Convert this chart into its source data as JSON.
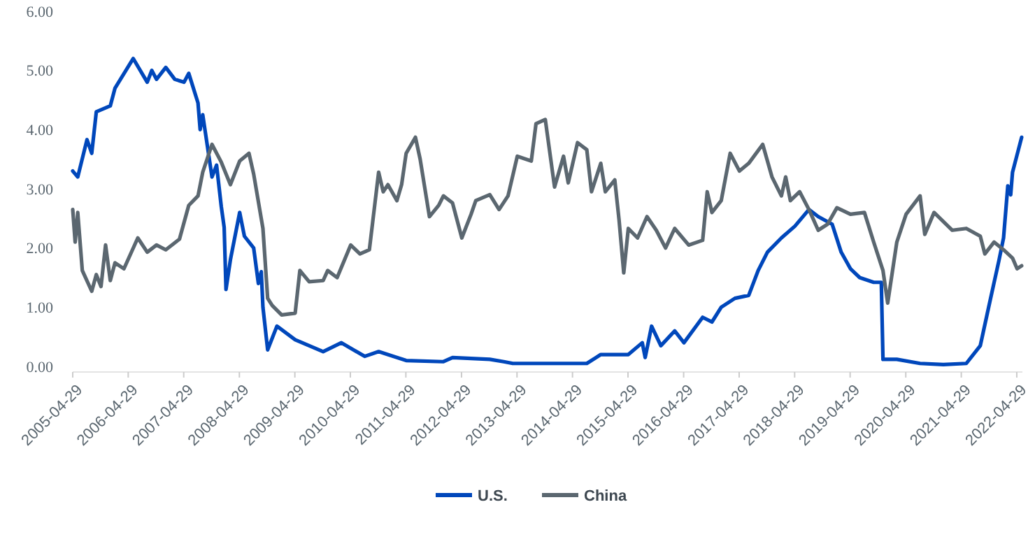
{
  "chart_data": {
    "type": "line",
    "legend": "bottom",
    "grid": false,
    "marker": "none",
    "line_style": "solid",
    "xlim": [
      "2005-04-29",
      "2022-06-05"
    ],
    "xticks": [
      "2005-04-29",
      "2006-04-29",
      "2007-04-29",
      "2008-04-29",
      "2009-04-29",
      "2010-04-29",
      "2011-04-29",
      "2012-04-29",
      "2013-04-29",
      "2014-04-29",
      "2015-04-29",
      "2016-04-29",
      "2017-04-29",
      "2018-04-29",
      "2019-04-29",
      "2020-04-29",
      "2021-04-29",
      "2022-04-29"
    ],
    "ylim": [
      0,
      6
    ],
    "yticks": [
      {
        "value": 0,
        "label": "0.00"
      },
      {
        "value": 1,
        "label": "1.00"
      },
      {
        "value": 2,
        "label": "2.00"
      },
      {
        "value": 3,
        "label": "3.00"
      },
      {
        "value": 4,
        "label": "4.00"
      },
      {
        "value": 5,
        "label": "5.00"
      },
      {
        "value": 6,
        "label": "6.00"
      }
    ],
    "series": [
      {
        "name": "U.S.",
        "color": "#0047bb",
        "x": [
          "2005-04-29",
          "2005-06",
          "2005-08",
          "2005-09",
          "2005-10",
          "2006-01",
          "2006-02",
          "2006-06",
          "2006-09",
          "2006-10",
          "2006-11",
          "2007-01",
          "2007-03",
          "2007-05",
          "2007-06",
          "2007-08",
          "2007-08-15",
          "2007-09",
          "2007-11",
          "2007-12",
          "2008-01",
          "2008-01-20",
          "2008-02",
          "2008-03",
          "2008-05",
          "2008-06",
          "2008-08",
          "2008-09",
          "2008-09-20",
          "2008-10",
          "2008-11",
          "2009-01",
          "2009-05",
          "2009-11",
          "2010-03",
          "2010-08",
          "2010-11",
          "2011-05",
          "2012-01",
          "2012-03",
          "2012-11",
          "2013-02",
          "2013-04",
          "2014-08",
          "2014-11",
          "2015-05",
          "2015-08",
          "2015-08-20",
          "2015-10",
          "2015-12",
          "2016-03",
          "2016-05",
          "2016-09",
          "2016-11",
          "2017-01",
          "2017-04",
          "2017-07",
          "2017-09",
          "2017-11",
          "2018-02",
          "2018-05",
          "2018-08",
          "2018-10",
          "2019-01",
          "2019-03",
          "2019-05",
          "2019-07",
          "2019-10",
          "2019-11-20",
          "2019-12",
          "2020-03",
          "2020-08",
          "2021-01",
          "2021-06",
          "2021-09",
          "2021-11",
          "2022-01",
          "2022-02",
          "2022-03",
          "2022-03-20",
          "2022-04",
          "2022-05-31"
        ],
        "values": [
          3.3,
          3.2,
          3.83,
          3.6,
          4.3,
          4.4,
          4.7,
          5.2,
          4.8,
          5.0,
          4.85,
          5.05,
          4.85,
          4.8,
          4.95,
          4.45,
          4.0,
          4.25,
          3.2,
          3.4,
          2.7,
          2.35,
          1.3,
          1.8,
          2.6,
          2.2,
          2.0,
          1.4,
          1.6,
          1.0,
          0.28,
          0.68,
          0.45,
          0.25,
          0.4,
          0.17,
          0.25,
          0.1,
          0.08,
          0.15,
          0.12,
          0.08,
          0.05,
          0.05,
          0.2,
          0.2,
          0.4,
          0.15,
          0.68,
          0.35,
          0.6,
          0.4,
          0.83,
          0.75,
          1.0,
          1.15,
          1.2,
          1.62,
          1.93,
          2.17,
          2.37,
          2.65,
          2.53,
          2.4,
          1.93,
          1.65,
          1.5,
          1.42,
          1.42,
          0.12,
          0.12,
          0.05,
          0.03,
          0.05,
          0.35,
          1.07,
          1.78,
          2.17,
          3.05,
          2.9,
          3.28,
          3.87
        ]
      },
      {
        "name": "China",
        "color": "#5b6770",
        "x": [
          "2005-04-29",
          "2005-05-15",
          "2005-06",
          "2005-07",
          "2005-09",
          "2005-10",
          "2005-11",
          "2005-12",
          "2006-01",
          "2006-02",
          "2006-04",
          "2006-07",
          "2006-09",
          "2006-11",
          "2007-01",
          "2007-04",
          "2007-06",
          "2007-08",
          "2007-09",
          "2007-11",
          "2008-01",
          "2008-03",
          "2008-05",
          "2008-07",
          "2008-08",
          "2008-10",
          "2008-11",
          "2008-12",
          "2009-02",
          "2009-05",
          "2009-06",
          "2009-08",
          "2009-11",
          "2009-12",
          "2010-02",
          "2010-05",
          "2010-07",
          "2010-09",
          "2010-11",
          "2010-12",
          "2011-01",
          "2011-03",
          "2011-04",
          "2011-05",
          "2011-07",
          "2011-08",
          "2011-10",
          "2011-12",
          "2012-01",
          "2012-03",
          "2012-05",
          "2012-07",
          "2012-08",
          "2012-11",
          "2013-01",
          "2013-03",
          "2013-05",
          "2013-08",
          "2013-09",
          "2013-11",
          "2014-01",
          "2014-03",
          "2014-04",
          "2014-06",
          "2014-08",
          "2014-09",
          "2014-11",
          "2014-12",
          "2015-02",
          "2015-03",
          "2015-04",
          "2015-05",
          "2015-07",
          "2015-09",
          "2015-11",
          "2016-01",
          "2016-03",
          "2016-06",
          "2016-09",
          "2016-10",
          "2016-11",
          "2017-01",
          "2017-03",
          "2017-05",
          "2017-07",
          "2017-10",
          "2017-12",
          "2018-02",
          "2018-03",
          "2018-04",
          "2018-06",
          "2018-08",
          "2018-10",
          "2018-12",
          "2019-02",
          "2019-05",
          "2019-08",
          "2019-10",
          "2019-12",
          "2020-01",
          "2020-03",
          "2020-05",
          "2020-08",
          "2020-09",
          "2020-11",
          "2021-03",
          "2021-06",
          "2021-09",
          "2021-10",
          "2021-12",
          "2022-02",
          "2022-04",
          "2022-05",
          "2022-05-31"
        ],
        "values": [
          2.65,
          2.1,
          2.6,
          1.62,
          1.27,
          1.55,
          1.35,
          2.05,
          1.45,
          1.75,
          1.65,
          2.17,
          1.93,
          2.05,
          1.97,
          2.15,
          2.72,
          2.88,
          3.28,
          3.75,
          3.45,
          3.07,
          3.47,
          3.6,
          3.25,
          2.33,
          1.15,
          1.03,
          0.87,
          0.9,
          1.62,
          1.43,
          1.45,
          1.62,
          1.5,
          2.05,
          1.9,
          1.97,
          3.28,
          2.95,
          3.07,
          2.8,
          3.07,
          3.6,
          3.87,
          3.5,
          2.53,
          2.72,
          2.88,
          2.76,
          2.17,
          2.57,
          2.8,
          2.9,
          2.65,
          2.88,
          3.55,
          3.47,
          4.1,
          4.17,
          3.03,
          3.55,
          3.1,
          3.78,
          3.66,
          2.95,
          3.43,
          2.95,
          3.15,
          2.48,
          1.58,
          2.33,
          2.17,
          2.53,
          2.3,
          2.0,
          2.33,
          2.05,
          2.13,
          2.95,
          2.6,
          2.8,
          3.6,
          3.3,
          3.43,
          3.75,
          3.2,
          2.88,
          3.2,
          2.8,
          2.95,
          2.65,
          2.3,
          2.4,
          2.68,
          2.57,
          2.6,
          2.1,
          1.62,
          1.07,
          2.1,
          2.57,
          2.88,
          2.23,
          2.6,
          2.3,
          2.33,
          2.2,
          1.9,
          2.1,
          1.97,
          1.83,
          1.65,
          1.7
        ]
      }
    ]
  }
}
